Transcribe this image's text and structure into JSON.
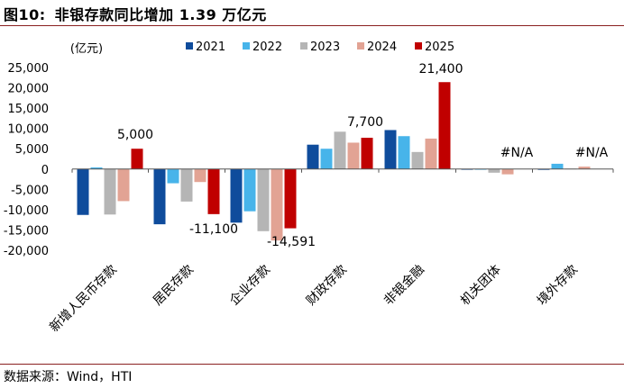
{
  "figure": {
    "label": "图10:",
    "title": "非银存款同比增加 1.39 万亿元",
    "source": "数据来源：Wind，HTI"
  },
  "colors": {
    "2021": "#0f4c9c",
    "2022": "#47b4ea",
    "2023": "#b5b5b5",
    "2024": "#e2a394",
    "2025": "#c00000",
    "rule": "#8a2020"
  },
  "chart_data": {
    "type": "bar",
    "title": "非银存款同比增加 1.39 万亿元",
    "ylabel": "(亿元)",
    "xlabel": "",
    "ylim": [
      -20000,
      25000
    ],
    "yticks": [
      25000,
      20000,
      15000,
      10000,
      5000,
      0,
      -5000,
      -10000,
      -15000,
      -20000
    ],
    "grid": false,
    "legend_position": "top",
    "categories": [
      "新增人民币存款",
      "居民存款",
      "企业存款",
      "财政存款",
      "非银金融",
      "机关团体",
      "境外存款"
    ],
    "series": [
      {
        "name": "2021",
        "values": [
          -11300,
          -13600,
          -13200,
          6000,
          9600,
          -100,
          -200
        ]
      },
      {
        "name": "2022",
        "values": [
          400,
          -3500,
          -10400,
          5000,
          8100,
          -100,
          1300
        ]
      },
      {
        "name": "2023",
        "values": [
          -11200,
          -8000,
          -15300,
          9200,
          4200,
          -900,
          100
        ]
      },
      {
        "name": "2024",
        "values": [
          -7900,
          -3200,
          -17600,
          6500,
          7500,
          -1300,
          600
        ]
      },
      {
        "name": "2025",
        "values": [
          5000,
          -11100,
          -14591,
          7700,
          21400,
          null,
          null
        ]
      }
    ],
    "annotations": [
      {
        "category": "新增人民币存款",
        "text": "5,000",
        "y": 5000
      },
      {
        "category": "居民存款",
        "text": "-11,100",
        "y": -11100
      },
      {
        "category": "企业存款",
        "text": "-14,591",
        "y": -14591
      },
      {
        "category": "财政存款",
        "text": "7,700",
        "y": 7700
      },
      {
        "category": "非银金融",
        "text": "21,400",
        "y": 21400
      },
      {
        "category": "机关团体",
        "text": "#N/A",
        "y": null
      },
      {
        "category": "境外存款",
        "text": "#N/A",
        "y": null
      }
    ]
  }
}
